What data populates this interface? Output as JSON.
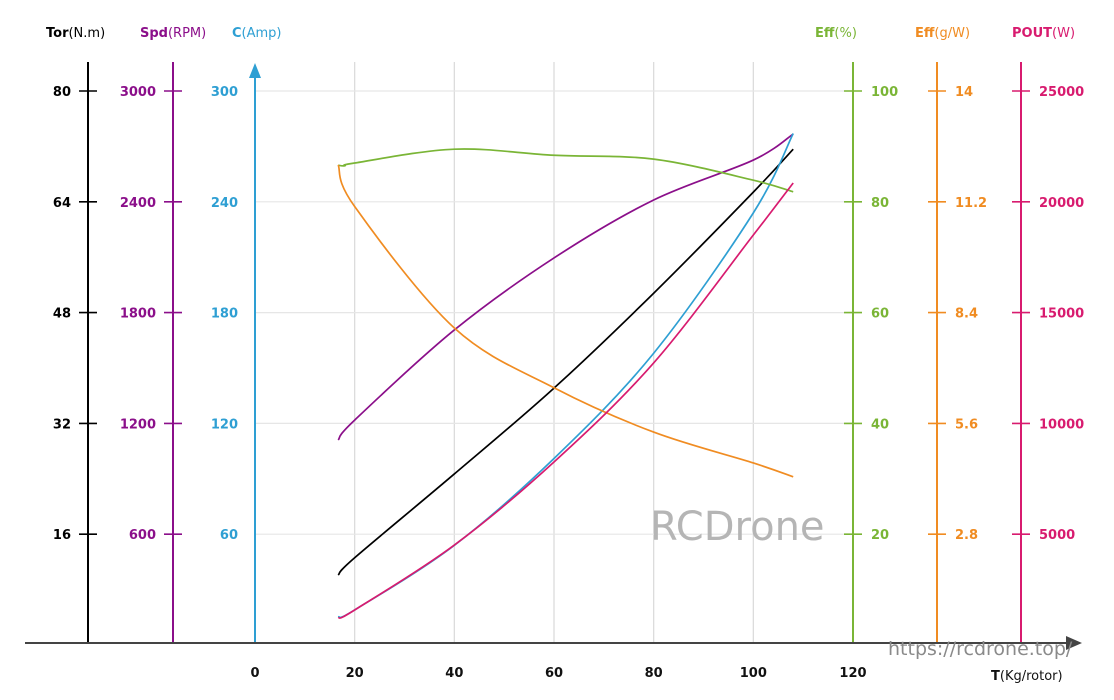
{
  "chart_data": {
    "type": "line",
    "title": "",
    "x_axis": {
      "label_main": "T",
      "label_unit": "(Kg/rotor)",
      "ticks": [
        0,
        20,
        40,
        60,
        80,
        100,
        120
      ],
      "range": [
        0,
        120
      ]
    },
    "grid": true,
    "y_axes": [
      {
        "key": "tor",
        "label_main": "Tor",
        "label_unit": "(N.m)",
        "side": "left",
        "color": "#000000",
        "range": [
          0,
          100
        ],
        "ticks": [
          "80",
          "64",
          "48",
          "32",
          "16"
        ],
        "tick_values": [
          80,
          64,
          48,
          32,
          16
        ]
      },
      {
        "key": "spd",
        "label_main": "Spd",
        "label_unit": "(RPM)",
        "side": "left",
        "color": "#8b0f8a",
        "range": [
          0,
          3750
        ],
        "ticks": [
          "3000",
          "2400",
          "1800",
          "1200",
          "600"
        ],
        "tick_values": [
          3000,
          2400,
          1800,
          1200,
          600
        ]
      },
      {
        "key": "c",
        "label_main": "C",
        "label_unit": "(Amp)",
        "side": "left",
        "color": "#2e9fd3",
        "range": [
          0,
          375
        ],
        "ticks": [
          "300",
          "240",
          "180",
          "120",
          "60"
        ],
        "tick_values": [
          300,
          240,
          180,
          120,
          60
        ]
      },
      {
        "key": "effp",
        "label_main": "Eff",
        "label_unit": "(%)",
        "side": "right",
        "color": "#7ab536",
        "range": [
          0,
          125
        ],
        "ticks": [
          "100",
          "80",
          "60",
          "40",
          "20"
        ],
        "tick_values": [
          100,
          80,
          60,
          40,
          20
        ]
      },
      {
        "key": "effg",
        "label_main": "Eff",
        "label_unit": "(g/W)",
        "side": "right",
        "color": "#f08c22",
        "range": [
          0,
          17.5
        ],
        "ticks": [
          "14",
          "11.2",
          "8.4",
          "5.6",
          "2.8"
        ],
        "tick_values": [
          14,
          11.2,
          8.4,
          5.6,
          2.8
        ]
      },
      {
        "key": "pout",
        "label_main": "POUT",
        "label_unit": "(W)",
        "side": "right",
        "color": "#d81b6f",
        "range": [
          0,
          31250
        ],
        "ticks": [
          "25000",
          "20000",
          "15000",
          "10000",
          "5000"
        ],
        "tick_values": [
          25000,
          20000,
          15000,
          10000,
          5000
        ]
      }
    ],
    "series": [
      {
        "axis": "tor",
        "color": "#000000",
        "x": [
          16.7,
          20,
          40,
          60,
          80,
          100,
          108
        ],
        "y": [
          10.1,
          12.6,
          24.7,
          37.1,
          50.8,
          65.4,
          71.6
        ]
      },
      {
        "axis": "spd",
        "color": "#8b0f8a",
        "x": [
          16.7,
          20,
          40,
          60,
          80,
          100,
          108
        ],
        "y": [
          1110,
          1218,
          1706,
          2096,
          2410,
          2626,
          2767
        ]
      },
      {
        "axis": "c",
        "color": "#2e9fd3",
        "x": [
          16.7,
          20,
          40,
          60,
          80,
          100,
          108
        ],
        "y": [
          15.2,
          19,
          54,
          101,
          158,
          234,
          277
        ]
      },
      {
        "axis": "effp",
        "color": "#7ab536",
        "x": [
          16.7,
          18,
          20,
          40,
          60,
          80,
          100,
          108
        ],
        "y": [
          86.6,
          86.5,
          87,
          89.5,
          88.4,
          87.7,
          83.9,
          81.8
        ]
      },
      {
        "axis": "effg",
        "color": "#f08c22",
        "x": [
          16.7,
          20,
          40,
          60,
          80,
          100,
          108
        ],
        "y": [
          12.13,
          11.08,
          8.01,
          6.5,
          5.38,
          4.6,
          4.25
        ]
      },
      {
        "axis": "pout",
        "color": "#d81b6f",
        "x": [
          16.7,
          20,
          40,
          60,
          80,
          100,
          108
        ],
        "y": [
          1218,
          1580,
          4510,
          8260,
          12730,
          18500,
          20850
        ]
      }
    ]
  },
  "watermark": {
    "logo": "RCDrone",
    "url": "https://rcdrone.top/"
  }
}
